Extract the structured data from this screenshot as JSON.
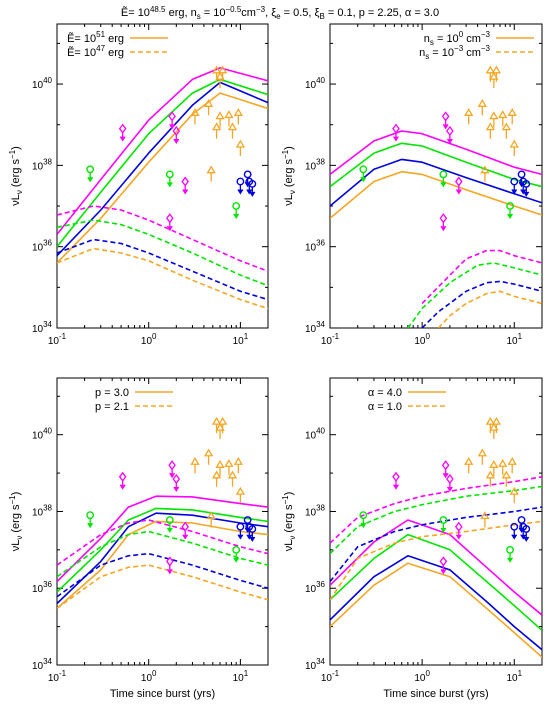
{
  "figure": {
    "title": "Ẽ= 10^48.5 erg, n_s = 10^−0.5 cm^−3, ξ_e = 0.5, ξ_B = 0.1, p = 2.25, α = 3.0",
    "title_parts": {
      "e": "Ẽ= 10",
      "e_exp": "48.5",
      "e_unit": " erg, n",
      "ns_sub": "s",
      "ns_eq": " = 10",
      "ns_exp": "−0.5",
      "ns_unit": "cm",
      "ns_unit_exp": "−3",
      "xi": ", ξ",
      "xie_sub": "e",
      "xie_val": " = 0.5, ξ",
      "xib_sub": "B",
      "rest": " = 0.1, p = 2.25, α = 3.0"
    },
    "colors": {
      "magenta": "#ff00ff",
      "green": "#00e600",
      "blue": "#0000dd",
      "orange": "#f5a623"
    }
  },
  "chart_data": [
    {
      "type": "line",
      "panel": "top-left",
      "xlabel": "",
      "ylabel": "νL_ν (erg s^−1)",
      "xscale": "log",
      "yscale": "log",
      "xlim": [
        0.1,
        20
      ],
      "ylim": [
        1e+34,
        3e+41
      ],
      "xticklabels": [
        "10^-1",
        "10^0",
        "10^1"
      ],
      "yticklabels": [
        "10^34",
        "10^36",
        "10^38",
        "10^40"
      ],
      "legend": [
        {
          "label": "Ẽ= 10^51 erg",
          "text": "Ẽ= 10",
          "exp": "51",
          "unit": " erg",
          "style": "solid"
        },
        {
          "label": "Ẽ= 10^47 erg",
          "text": "Ẽ= 10",
          "exp": "47",
          "unit": " erg",
          "style": "dashed"
        }
      ],
      "legend_position": "top-left",
      "series": [
        {
          "color": "#ff00ff",
          "style": "solid",
          "x": [
            0.1,
            0.3,
            1,
            3,
            6,
            20
          ],
          "y": [
            2e+36,
            4.5e+37,
            1.3e+39,
            1.3e+40,
            2.5e+40,
            1.2e+40
          ]
        },
        {
          "color": "#00e600",
          "style": "solid",
          "x": [
            0.1,
            0.3,
            1,
            3,
            6,
            20
          ],
          "y": [
            1e+36,
            2.2e+37,
            6e+38,
            6e+39,
            1.3e+40,
            5.5e+39
          ]
        },
        {
          "color": "#0000dd",
          "style": "solid",
          "x": [
            0.1,
            0.3,
            1,
            3,
            6,
            20
          ],
          "y": [
            6e+35,
            8e+36,
            2e+38,
            3e+39,
            1.1e+40,
            3.5e+39
          ]
        },
        {
          "color": "#f5a623",
          "style": "solid",
          "x": [
            0.1,
            0.3,
            1,
            3,
            6,
            20
          ],
          "y": [
            4e+35,
            5e+36,
            1.2e+38,
            1.8e+39,
            6e+39,
            2.5e+39
          ]
        },
        {
          "color": "#ff00ff",
          "style": "dashed",
          "x": [
            0.1,
            0.25,
            0.5,
            1,
            3,
            10,
            20
          ],
          "y": [
            6e+36,
            1e+37,
            8e+36,
            4.5e+36,
            1.5e+36,
            4.5e+35,
            2.5e+35
          ]
        },
        {
          "color": "#00e600",
          "style": "dashed",
          "x": [
            0.1,
            0.25,
            0.5,
            1,
            3,
            10,
            20
          ],
          "y": [
            3e+36,
            4.5e+36,
            3.5e+36,
            2e+36,
            7e+35,
            2e+35,
            1.1e+35
          ]
        },
        {
          "color": "#0000dd",
          "style": "dashed",
          "x": [
            0.1,
            0.25,
            0.5,
            1,
            3,
            10,
            20
          ],
          "y": [
            7e+35,
            1.5e+36,
            1.2e+36,
            7e+35,
            2.5e+35,
            8e+34,
            5e+34
          ]
        },
        {
          "color": "#f5a623",
          "style": "dashed",
          "x": [
            0.1,
            0.25,
            0.5,
            1,
            3,
            10,
            20
          ],
          "y": [
            4e+35,
            9e+35,
            7e+35,
            4.5e+35,
            1.5e+35,
            5e+34,
            3e+34
          ]
        }
      ]
    },
    {
      "type": "line",
      "panel": "top-right",
      "xlabel": "",
      "ylabel": "νL_ν (erg s^−1)",
      "xscale": "log",
      "yscale": "log",
      "xlim": [
        0.1,
        20
      ],
      "ylim": [
        1e+34,
        3e+41
      ],
      "xticklabels": [
        "10^-1",
        "10^0",
        "10^1"
      ],
      "yticklabels": [
        "10^34",
        "10^36",
        "10^38",
        "10^40"
      ],
      "legend": [
        {
          "label": "n_s = 10^0 cm^−3",
          "text": "n",
          "sub": "s",
          "eq": " = 10",
          "exp": "0",
          "unit": " cm",
          "unit_exp": "−3",
          "style": "solid"
        },
        {
          "label": "n_s = 10^−3 cm^−3",
          "text": "n",
          "sub": "s",
          "eq": " = 10",
          "exp": "−3",
          "unit": " cm",
          "unit_exp": "−3",
          "style": "dashed"
        }
      ],
      "legend_position": "top-right",
      "series": [
        {
          "color": "#ff00ff",
          "style": "solid",
          "x": [
            0.1,
            0.3,
            0.6,
            1,
            3,
            10,
            20
          ],
          "y": [
            6e+37,
            4e+38,
            7e+38,
            6e+38,
            2.5e+38,
            9e+37,
            6e+37
          ]
        },
        {
          "color": "#00e600",
          "style": "solid",
          "x": [
            0.1,
            0.3,
            0.6,
            1,
            3,
            10,
            20
          ],
          "y": [
            3e+37,
            2e+38,
            3.5e+38,
            3e+38,
            1.2e+38,
            4.5e+37,
            3e+37
          ]
        },
        {
          "color": "#0000dd",
          "style": "solid",
          "x": [
            0.1,
            0.3,
            0.6,
            1,
            3,
            10,
            20
          ],
          "y": [
            1e+37,
            8e+37,
            1.4e+38,
            1.2e+38,
            5e+37,
            2e+37,
            1.2e+37
          ]
        },
        {
          "color": "#f5a623",
          "style": "solid",
          "x": [
            0.1,
            0.3,
            0.6,
            1,
            3,
            10,
            20
          ],
          "y": [
            5e+36,
            4e+37,
            7e+37,
            6e+37,
            2.5e+37,
            1e+37,
            6e+36
          ]
        },
        {
          "color": "#ff00ff",
          "style": "dashed",
          "x": [
            1,
            2,
            3,
            5,
            7,
            10,
            20
          ],
          "y": [
            4e+34,
            2e+35,
            5e+35,
            8e+35,
            8e+35,
            6e+35,
            4e+35
          ]
        },
        {
          "color": "#00e600",
          "style": "dashed",
          "x": [
            0.7,
            1,
            2,
            4,
            6,
            10,
            20
          ],
          "y": [
            1e+34,
            3e+34,
            1.3e+35,
            3.5e+35,
            4e+35,
            3e+35,
            2e+35
          ]
        },
        {
          "color": "#0000dd",
          "style": "dashed",
          "x": [
            1,
            1.5,
            3,
            5,
            7,
            10,
            20
          ],
          "y": [
            1e+34,
            2.5e+34,
            8e+34,
            1.3e+35,
            1.4e+35,
            1.2e+35,
            8e+34
          ]
        },
        {
          "color": "#f5a623",
          "style": "dashed",
          "x": [
            1.5,
            2,
            3,
            5,
            7,
            10,
            20
          ],
          "y": [
            1e+34,
            2e+34,
            4e+34,
            7e+34,
            8e+34,
            6e+34,
            4e+34
          ]
        }
      ]
    },
    {
      "type": "line",
      "panel": "bottom-left",
      "xlabel": "Time since burst (yrs)",
      "ylabel": "νL_ν (erg s^−1)",
      "xscale": "log",
      "yscale": "log",
      "xlim": [
        0.1,
        20
      ],
      "ylim": [
        1e+34,
        3e+41
      ],
      "xticklabels": [
        "10^-1",
        "10^0",
        "10^1"
      ],
      "yticklabels": [
        "10^34",
        "10^36",
        "10^38",
        "10^40"
      ],
      "legend": [
        {
          "label": "p = 3.0",
          "text": "p = 3.0",
          "style": "solid"
        },
        {
          "label": "p = 2.1",
          "text": "p = 2.1",
          "style": "dashed"
        }
      ],
      "legend_position": "top-left",
      "series": [
        {
          "color": "#ff00ff",
          "style": "solid",
          "x": [
            0.1,
            0.3,
            0.6,
            1.2,
            3,
            10,
            20
          ],
          "y": [
            1.5e+36,
            2e+37,
            1.3e+38,
            2.5e+38,
            2.4e+38,
            1.6e+38,
            1.3e+38
          ]
        },
        {
          "color": "#00e600",
          "style": "solid",
          "x": [
            0.1,
            0.3,
            0.6,
            1.2,
            3,
            10,
            20
          ],
          "y": [
            8e+35,
            1e+37,
            6e+37,
            1.2e+38,
            1.1e+38,
            7e+37,
            5.5e+37
          ]
        },
        {
          "color": "#0000dd",
          "style": "solid",
          "x": [
            0.1,
            0.3,
            0.6,
            1.2,
            3,
            10,
            20
          ],
          "y": [
            4e+35,
            5e+36,
            4e+37,
            9e+37,
            8e+37,
            5e+37,
            4e+37
          ]
        },
        {
          "color": "#f5a623",
          "style": "solid",
          "x": [
            0.1,
            0.3,
            0.6,
            1.2,
            3,
            10,
            20
          ],
          "y": [
            3e+35,
            3e+36,
            2.5e+37,
            5.5e+37,
            5e+37,
            3e+37,
            2.5e+37
          ]
        },
        {
          "color": "#ff00ff",
          "style": "dashed",
          "x": [
            0.1,
            0.3,
            0.6,
            1,
            3,
            10,
            20
          ],
          "y": [
            4e+36,
            2.5e+37,
            5e+37,
            6e+37,
            3e+37,
            1.2e+37,
            8e+36
          ]
        },
        {
          "color": "#00e600",
          "style": "dashed",
          "x": [
            0.1,
            0.3,
            0.6,
            1,
            3,
            10,
            20
          ],
          "y": [
            2e+36,
            1.2e+37,
            2.5e+37,
            3e+37,
            1.5e+37,
            6e+36,
            4e+36
          ]
        },
        {
          "color": "#0000dd",
          "style": "dashed",
          "x": [
            0.1,
            0.3,
            0.6,
            1,
            3,
            10,
            20
          ],
          "y": [
            6e+35,
            4e+36,
            7e+36,
            8e+36,
            4e+36,
            1.6e+36,
            1e+36
          ]
        },
        {
          "color": "#f5a623",
          "style": "dashed",
          "x": [
            0.1,
            0.3,
            0.6,
            1,
            3,
            10,
            20
          ],
          "y": [
            3e+35,
            2e+36,
            3.5e+36,
            4e+36,
            2e+36,
            8e+35,
            5e+35
          ]
        }
      ]
    },
    {
      "type": "line",
      "panel": "bottom-right",
      "xlabel": "Time since burst (yrs)",
      "ylabel": "νL_ν (erg s^−1)",
      "xscale": "log",
      "yscale": "log",
      "xlim": [
        0.1,
        20
      ],
      "ylim": [
        1e+34,
        3e+41
      ],
      "xticklabels": [
        "10^-1",
        "10^0",
        "10^1"
      ],
      "yticklabels": [
        "10^34",
        "10^36",
        "10^38",
        "10^40"
      ],
      "legend": [
        {
          "label": "α = 4.0",
          "text": "α = 4.0",
          "style": "solid"
        },
        {
          "label": "α = 1.0",
          "text": "α = 1.0",
          "style": "dashed"
        }
      ],
      "legend_position": "top-left",
      "series": [
        {
          "color": "#ff00ff",
          "style": "solid",
          "x": [
            0.1,
            0.3,
            0.7,
            2,
            5,
            10,
            20
          ],
          "y": [
            1.2e+36,
            1.6e+37,
            6e+37,
            2.5e+37,
            3.5e+36,
            8e+35,
            2e+35
          ]
        },
        {
          "color": "#00e600",
          "style": "solid",
          "x": [
            0.1,
            0.3,
            0.7,
            2,
            5,
            10,
            20
          ],
          "y": [
            5e+35,
            6e+36,
            2.5e+37,
            1e+37,
            1.5e+36,
            3.5e+35,
            8e+34
          ]
        },
        {
          "color": "#0000dd",
          "style": "solid",
          "x": [
            0.1,
            0.3,
            0.7,
            2,
            5,
            10,
            20
          ],
          "y": [
            1.5e+35,
            2e+36,
            7e+36,
            3e+36,
            4.5e+35,
            1e+35,
            2.5e+34
          ]
        },
        {
          "color": "#f5a623",
          "style": "solid",
          "x": [
            0.1,
            0.3,
            0.7,
            2,
            5,
            10,
            20
          ],
          "y": [
            1e+35,
            1.2e+36,
            4.5e+36,
            2e+36,
            3e+35,
            7e+34,
            1.6e+34
          ]
        },
        {
          "color": "#ff00ff",
          "style": "dashed",
          "x": [
            0.1,
            0.2,
            0.5,
            1,
            3,
            10,
            20
          ],
          "y": [
            1.5e+37,
            7e+37,
            1.6e+38,
            2.5e+38,
            4e+38,
            6e+38,
            8e+38
          ]
        },
        {
          "color": "#00e600",
          "style": "dashed",
          "x": [
            0.1,
            0.2,
            0.5,
            1,
            3,
            10,
            20
          ],
          "y": [
            8e+36,
            4e+37,
            1e+38,
            1.5e+38,
            2.5e+38,
            3.5e+38,
            4.5e+38
          ]
        },
        {
          "color": "#0000dd",
          "style": "dashed",
          "x": [
            0.1,
            0.2,
            0.5,
            1,
            3,
            10,
            20
          ],
          "y": [
            1.5e+36,
            1.2e+37,
            3e+37,
            4.5e+37,
            7e+37,
            1e+38,
            1.3e+38
          ]
        },
        {
          "color": "#f5a623",
          "style": "dashed",
          "x": [
            0.1,
            0.2,
            0.5,
            1,
            3,
            10,
            20
          ],
          "y": [
            5e+35,
            6e+36,
            1.5e+37,
            2.2e+37,
            3e+37,
            4.5e+37,
            5.5e+37
          ]
        }
      ]
    }
  ],
  "observations": [
    {
      "color": "#00e600",
      "marker": "circle",
      "x": 0.23,
      "y": 8e+37
    },
    {
      "color": "#ff00ff",
      "marker": "diamond",
      "x": 0.52,
      "y": 8e+38
    },
    {
      "color": "#ff00ff",
      "marker": "diamond",
      "x": 1.8,
      "y": 1.6e+39
    },
    {
      "color": "#ff00ff",
      "marker": "diamond",
      "x": 2.0,
      "y": 7e+38
    },
    {
      "color": "#00e600",
      "marker": "circle",
      "x": 1.7,
      "y": 6e+37
    },
    {
      "color": "#ff00ff",
      "marker": "diamond",
      "x": 2.5,
      "y": 4e+37
    },
    {
      "color": "#ff00ff",
      "marker": "diamond",
      "x": 1.7,
      "y": 5e+36
    },
    {
      "color": "#00e600",
      "marker": "circle",
      "x": 9.0,
      "y": 1e+37
    },
    {
      "color": "#0000dd",
      "marker": "circle",
      "x": 10.0,
      "y": 4e+37
    },
    {
      "color": "#0000dd",
      "marker": "circle",
      "x": 12.0,
      "y": 6e+37
    },
    {
      "color": "#0000dd",
      "marker": "circle",
      "x": 12.5,
      "y": 4e+37
    },
    {
      "color": "#0000dd",
      "marker": "circle",
      "x": 13.5,
      "y": 3.5e+37
    },
    {
      "color": "#f5a623",
      "marker": "triangle",
      "x": 5.5,
      "y": 2e+40
    },
    {
      "color": "#f5a623",
      "marker": "triangle",
      "x": 6.0,
      "y": 1.4e+40
    },
    {
      "color": "#f5a623",
      "marker": "triangle",
      "x": 6.4,
      "y": 2e+40
    },
    {
      "color": "#f5a623",
      "marker": "triangle",
      "x": 4.5,
      "y": 3e+39
    },
    {
      "color": "#f5a623",
      "marker": "triangle",
      "x": 3.2,
      "y": 1.8e+39
    },
    {
      "color": "#f5a623",
      "marker": "triangle",
      "x": 6.0,
      "y": 1.5e+39
    },
    {
      "color": "#f5a623",
      "marker": "triangle",
      "x": 7.5,
      "y": 1.6e+39
    },
    {
      "color": "#f5a623",
      "marker": "triangle",
      "x": 9.5,
      "y": 1.8e+39
    },
    {
      "color": "#f5a623",
      "marker": "triangle",
      "x": 5.5,
      "y": 8e+38
    },
    {
      "color": "#f5a623",
      "marker": "triangle",
      "x": 8.2,
      "y": 8e+38
    },
    {
      "color": "#f5a623",
      "marker": "triangle",
      "x": 10.0,
      "y": 3e+38
    },
    {
      "color": "#f5a623",
      "marker": "triangle",
      "x": 4.8,
      "y": 7e+37
    }
  ]
}
